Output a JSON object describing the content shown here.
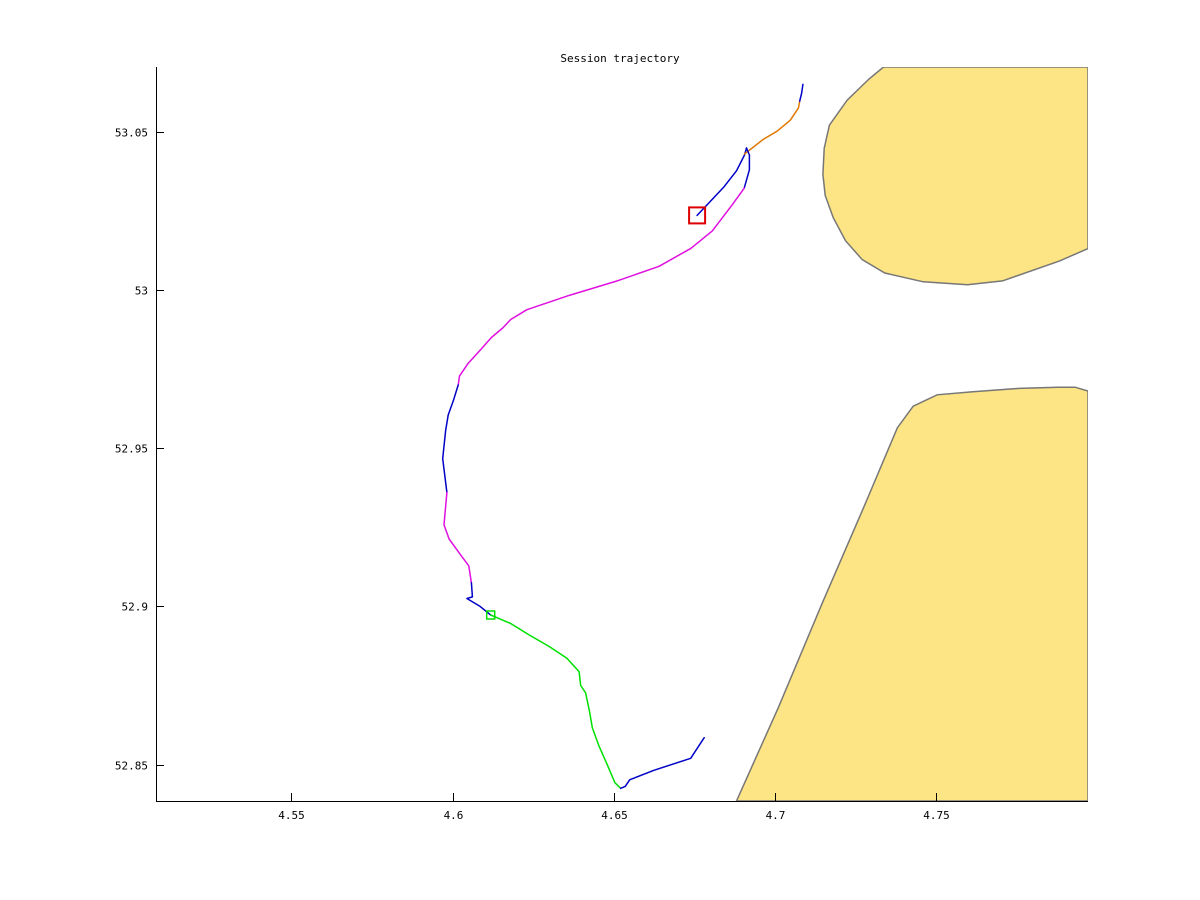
{
  "chart_data": {
    "type": "line",
    "title": "Session trajectory",
    "xlabel": "",
    "ylabel": "",
    "xlim": [
      4.508,
      4.797
    ],
    "ylim": [
      52.8385,
      53.0705
    ],
    "xticks": [
      {
        "value": 4.55,
        "label": "4.55"
      },
      {
        "value": 4.6,
        "label": "4.6"
      },
      {
        "value": 4.65,
        "label": "4.65"
      },
      {
        "value": 4.7,
        "label": "4.7"
      },
      {
        "value": 4.75,
        "label": "4.75"
      }
    ],
    "yticks": [
      {
        "value": 52.85,
        "label": "52.85"
      },
      {
        "value": 52.9,
        "label": "52.9"
      },
      {
        "value": 52.95,
        "label": "52.95"
      },
      {
        "value": 53.0,
        "label": "53"
      },
      {
        "value": 53.05,
        "label": "53.05"
      }
    ],
    "grid": false,
    "land": {
      "fill": "#fde484",
      "stroke": "#777777",
      "polygons": [
        [
          [
            4.797,
            53.0705
          ],
          [
            4.7336,
            53.0705
          ],
          [
            4.7291,
            53.0667
          ],
          [
            4.7223,
            53.06
          ],
          [
            4.7168,
            53.0521
          ],
          [
            4.7152,
            53.0448
          ],
          [
            4.7148,
            53.0366
          ],
          [
            4.7155,
            53.0299
          ],
          [
            4.718,
            53.0229
          ],
          [
            4.7218,
            53.0156
          ],
          [
            4.727,
            53.0096
          ],
          [
            4.734,
            53.0054
          ],
          [
            4.7459,
            53.0026
          ],
          [
            4.7596,
            53.0017
          ],
          [
            4.7705,
            53.0029
          ],
          [
            4.7882,
            53.0092
          ],
          [
            4.797,
            53.0131
          ]
        ],
        [
          [
            4.797,
            52.8385
          ],
          [
            4.688,
            52.8385
          ],
          [
            4.701,
            52.8681
          ],
          [
            4.7147,
            52.9013
          ],
          [
            4.7277,
            52.9319
          ],
          [
            4.7379,
            52.9565
          ],
          [
            4.7428,
            52.9633
          ],
          [
            4.7502,
            52.9669
          ],
          [
            4.7608,
            52.9678
          ],
          [
            4.7756,
            52.9689
          ],
          [
            4.7877,
            52.9693
          ],
          [
            4.793,
            52.9693
          ],
          [
            4.797,
            52.9681
          ]
        ]
      ]
    },
    "series": [
      {
        "color": "#0000c8",
        "points": [
          [
            4.6758,
            53.0236
          ],
          [
            4.6796,
            53.0277
          ],
          [
            4.6842,
            53.0327
          ],
          [
            4.688,
            53.0377
          ],
          [
            4.6905,
            53.0427
          ],
          [
            4.6911,
            53.0449
          ]
        ]
      },
      {
        "color": "#e07800",
        "points": [
          [
            4.6905,
            53.043
          ],
          [
            4.6964,
            53.0477
          ],
          [
            4.7006,
            53.0502
          ],
          [
            4.7047,
            53.0537
          ],
          [
            4.7072,
            53.0575
          ],
          [
            4.7076,
            53.0597
          ]
        ]
      },
      {
        "color": "#0000c8",
        "points": [
          [
            4.7076,
            53.0597
          ],
          [
            4.7082,
            53.0622
          ],
          [
            4.7086,
            53.065
          ]
        ]
      },
      {
        "color": "#0000c8",
        "points": [
          [
            4.6911,
            53.0449
          ],
          [
            4.692,
            53.0427
          ],
          [
            4.692,
            53.038
          ],
          [
            4.6904,
            53.0322
          ]
        ]
      },
      {
        "color": "#e010e0",
        "points": [
          [
            4.6904,
            53.0322
          ],
          [
            4.6868,
            53.0271
          ],
          [
            4.6805,
            53.0187
          ],
          [
            4.6739,
            53.0132
          ],
          [
            4.664,
            53.0075
          ],
          [
            4.6513,
            53.003
          ],
          [
            4.6364,
            52.9984
          ],
          [
            4.623,
            52.9938
          ],
          [
            4.618,
            52.9907
          ],
          [
            4.6155,
            52.988
          ],
          [
            4.612,
            52.985
          ],
          [
            4.6085,
            52.981
          ],
          [
            4.6047,
            52.9767
          ],
          [
            4.6021,
            52.9728
          ],
          [
            4.6017,
            52.97
          ]
        ]
      },
      {
        "color": "#0000c8",
        "points": [
          [
            4.6017,
            52.97
          ],
          [
            4.6002,
            52.965
          ],
          [
            4.5986,
            52.9605
          ],
          [
            4.5978,
            52.9555
          ],
          [
            4.5969,
            52.9467
          ],
          [
            4.5982,
            52.936
          ]
        ]
      },
      {
        "color": "#e010e0",
        "points": [
          [
            4.5982,
            52.936
          ],
          [
            4.5973,
            52.9258
          ],
          [
            4.5989,
            52.9213
          ],
          [
            4.6023,
            52.9165
          ],
          [
            4.605,
            52.9128
          ],
          [
            4.6058,
            52.9075
          ]
        ]
      },
      {
        "color": "#0000c8",
        "points": [
          [
            4.6058,
            52.9075
          ],
          [
            4.6061,
            52.903
          ],
          [
            4.6044,
            52.9025
          ],
          [
            4.6085,
            52.9
          ],
          [
            4.6118,
            52.8973
          ]
        ]
      },
      {
        "color": "#00e000",
        "points": [
          [
            4.6118,
            52.8973
          ],
          [
            4.618,
            52.8946
          ],
          [
            4.624,
            52.8908
          ],
          [
            4.63,
            52.8873
          ],
          [
            4.6354,
            52.8836
          ],
          [
            4.6392,
            52.8794
          ],
          [
            4.6397,
            52.875
          ],
          [
            4.6412,
            52.8727
          ],
          [
            4.6424,
            52.867
          ],
          [
            4.6433,
            52.8617
          ],
          [
            4.6453,
            52.856
          ],
          [
            4.6479,
            52.85
          ],
          [
            4.6503,
            52.8443
          ],
          [
            4.6521,
            52.8425
          ]
        ]
      },
      {
        "color": "#0000c8",
        "points": [
          [
            4.6521,
            52.8425
          ],
          [
            4.6535,
            52.8431
          ],
          [
            4.6549,
            52.8452
          ],
          [
            4.6624,
            52.8482
          ],
          [
            4.6738,
            52.852
          ],
          [
            4.678,
            52.8585
          ]
        ]
      }
    ],
    "markers": [
      {
        "shape": "square",
        "color": "#dd0000",
        "x": 4.6758,
        "y": 53.0236,
        "size": "large"
      },
      {
        "shape": "square",
        "color": "#00dd00",
        "x": 4.6118,
        "y": 52.8973,
        "size": "small"
      }
    ]
  }
}
